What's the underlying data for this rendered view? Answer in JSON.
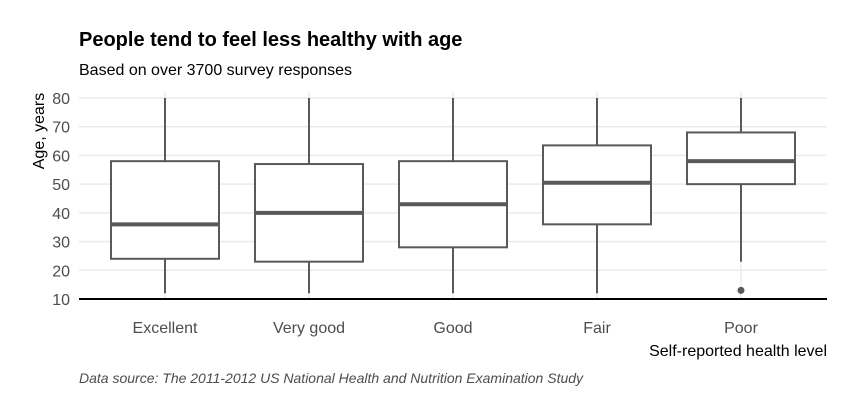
{
  "chart_data": {
    "type": "box",
    "title": "People tend to feel less healthy with age",
    "subtitle": "Based on over 3700 survey responses",
    "caption": "Data source: The 2011-2012 US National Health and Nutrition Examination Study",
    "xlabel": "Self-reported health level",
    "ylabel": "Age, years",
    "ylim": [
      10,
      80
    ],
    "yticks": [
      10,
      20,
      30,
      40,
      50,
      60,
      70,
      80
    ],
    "grid": true,
    "legend": "none",
    "categories": [
      "Excellent",
      "Very good",
      "Good",
      "Fair",
      "Poor"
    ],
    "boxes": [
      {
        "category": "Excellent",
        "min": 12,
        "q1": 24,
        "median": 36,
        "q3": 58,
        "max": 80,
        "outliers": []
      },
      {
        "category": "Very good",
        "min": 12,
        "q1": 23,
        "median": 40,
        "q3": 57,
        "max": 80,
        "outliers": []
      },
      {
        "category": "Good",
        "min": 12,
        "q1": 28,
        "median": 43,
        "q3": 58,
        "max": 80,
        "outliers": []
      },
      {
        "category": "Fair",
        "min": 12,
        "q1": 36,
        "median": 50.5,
        "q3": 63.5,
        "max": 80,
        "outliers": []
      },
      {
        "category": "Poor",
        "min": 23,
        "q1": 50,
        "median": 58,
        "q3": 68,
        "max": 80,
        "outliers": [
          13
        ]
      }
    ],
    "colors": {
      "box_stroke": "#595959",
      "grid": "#ebebeb",
      "baseline": "#000000",
      "outlier": "#595959"
    }
  }
}
